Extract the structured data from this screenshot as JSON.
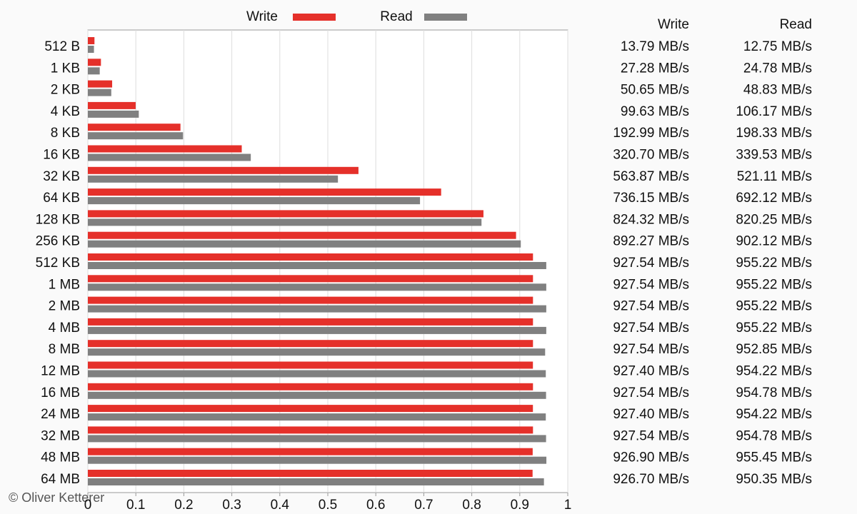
{
  "chart_data": {
    "type": "bar",
    "orientation": "horizontal",
    "categories": [
      "512 B",
      "1 KB",
      "2 KB",
      "4 KB",
      "8 KB",
      "16 KB",
      "32 KB",
      "64 KB",
      "128 KB",
      "256 KB",
      "512 KB",
      "1 MB",
      "2 MB",
      "4 MB",
      "8 MB",
      "12 MB",
      "16 MB",
      "24 MB",
      "32 MB",
      "48 MB",
      "64 MB"
    ],
    "series": [
      {
        "name": "Write",
        "color": "#e5302a",
        "values": [
          0.01379,
          0.02728,
          0.05065,
          0.09963,
          0.19299,
          0.3207,
          0.56387,
          0.73615,
          0.82432,
          0.89227,
          0.92754,
          0.92754,
          0.92754,
          0.92754,
          0.92754,
          0.9274,
          0.92754,
          0.9274,
          0.92754,
          0.9269,
          0.9267
        ],
        "value_labels": [
          "13.79 MB/s",
          "27.28 MB/s",
          "50.65 MB/s",
          "99.63 MB/s",
          "192.99 MB/s",
          "320.70 MB/s",
          "563.87 MB/s",
          "736.15 MB/s",
          "824.32 MB/s",
          "892.27 MB/s",
          "927.54 MB/s",
          "927.54 MB/s",
          "927.54 MB/s",
          "927.54 MB/s",
          "927.54 MB/s",
          "927.40 MB/s",
          "927.54 MB/s",
          "927.40 MB/s",
          "927.54 MB/s",
          "926.90 MB/s",
          "926.70 MB/s"
        ]
      },
      {
        "name": "Read",
        "color": "#808080",
        "values": [
          0.01275,
          0.02478,
          0.04883,
          0.10617,
          0.19833,
          0.33953,
          0.52111,
          0.69212,
          0.82025,
          0.90212,
          0.95522,
          0.95522,
          0.95522,
          0.95522,
          0.95285,
          0.95422,
          0.95478,
          0.95422,
          0.95478,
          0.95545,
          0.95035
        ],
        "value_labels": [
          "12.75 MB/s",
          "24.78 MB/s",
          "48.83 MB/s",
          "106.17 MB/s",
          "198.33 MB/s",
          "339.53 MB/s",
          "521.11 MB/s",
          "692.12 MB/s",
          "820.25 MB/s",
          "902.12 MB/s",
          "955.22 MB/s",
          "955.22 MB/s",
          "955.22 MB/s",
          "955.22 MB/s",
          "952.85 MB/s",
          "954.22 MB/s",
          "954.78 MB/s",
          "954.22 MB/s",
          "954.78 MB/s",
          "955.45 MB/s",
          "950.35 MB/s"
        ]
      }
    ],
    "xlim": [
      0,
      1
    ],
    "xticks": [
      0,
      0.1,
      0.2,
      0.3,
      0.4,
      0.5,
      0.6,
      0.7,
      0.8,
      0.9,
      1
    ],
    "grid": true,
    "legend": "top"
  },
  "credit": "© Oliver Ketterer"
}
